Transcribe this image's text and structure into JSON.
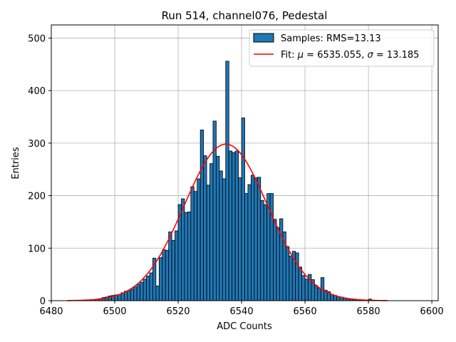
{
  "chart_data": {
    "type": "bar",
    "title": "Run 514, channel076, Pedestal",
    "xlabel": "ADC Counts",
    "ylabel": "Entries",
    "xlim": [
      6480,
      6602
    ],
    "ylim": [
      0,
      525
    ],
    "xticks": [
      6480,
      6500,
      6520,
      6540,
      6560,
      6580,
      6600
    ],
    "yticks": [
      0,
      100,
      200,
      300,
      400,
      500
    ],
    "grid": true,
    "legend_position": "top-right",
    "colors": {
      "bars": "#1f77b4",
      "bar_edge": "#000000",
      "fit": "#ff0000",
      "grid": "#b0b0b0"
    },
    "histogram": {
      "name": "Samples: RMS=13.13",
      "bin_width": 1,
      "bin_starts": [
        6493,
        6494,
        6495,
        6496,
        6497,
        6498,
        6499,
        6500,
        6501,
        6502,
        6503,
        6504,
        6505,
        6506,
        6507,
        6508,
        6509,
        6510,
        6511,
        6512,
        6513,
        6514,
        6515,
        6516,
        6517,
        6518,
        6519,
        6520,
        6521,
        6522,
        6523,
        6524,
        6525,
        6526,
        6527,
        6528,
        6529,
        6530,
        6531,
        6532,
        6533,
        6534,
        6535,
        6536,
        6537,
        6538,
        6539,
        6540,
        6541,
        6542,
        6543,
        6544,
        6545,
        6546,
        6547,
        6548,
        6549,
        6550,
        6551,
        6552,
        6553,
        6554,
        6555,
        6556,
        6557,
        6558,
        6559,
        6560,
        6561,
        6562,
        6563,
        6564,
        6565,
        6566,
        6567,
        6568,
        6569,
        6570,
        6571,
        6572,
        6573,
        6574,
        6575,
        6576,
        6577,
        6578,
        6579,
        6580,
        6581
      ],
      "counts": [
        2,
        3,
        4,
        6,
        7,
        9,
        10,
        11,
        12,
        15,
        18,
        19,
        22,
        26,
        31,
        35,
        41,
        47,
        53,
        81,
        28,
        82,
        97,
        96,
        131,
        115,
        133,
        183,
        194,
        168,
        169,
        217,
        208,
        232,
        325,
        276,
        220,
        261,
        342,
        275,
        247,
        232,
        456,
        285,
        282,
        285,
        234,
        348,
        204,
        221,
        239,
        234,
        235,
        191,
        183,
        204,
        204,
        155,
        139,
        156,
        131,
        103,
        85,
        94,
        91,
        64,
        48,
        41,
        50,
        40,
        29,
        24,
        44,
        20,
        17,
        12,
        10,
        8,
        7,
        5,
        4,
        3,
        2,
        2,
        1,
        1,
        1,
        3,
        1
      ]
    },
    "fit": {
      "name_prefix": "Fit: ",
      "mu_symbol": "μ",
      "sigma_symbol": "σ",
      "mu_value": " = 6535.055, ",
      "sigma_value": " = 13.185",
      "mu": 6535.055,
      "sigma": 13.185,
      "amplitude": 298,
      "x_range": [
        6485,
        6586
      ]
    }
  }
}
